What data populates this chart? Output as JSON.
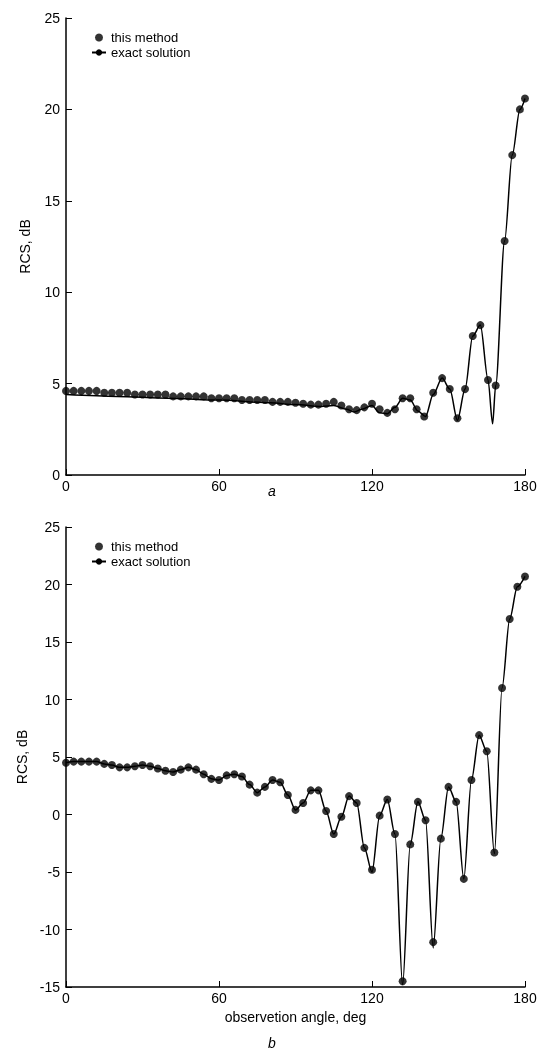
{
  "chart_data": [
    {
      "type": "scatter",
      "ylabel": "RCS, dB",
      "annotations": [
        "a"
      ],
      "xlim": [
        0,
        180
      ],
      "xticks": [
        0,
        60,
        120,
        180
      ],
      "ylim": [
        0,
        25
      ],
      "yticks": [
        0,
        5,
        10,
        15,
        20,
        25
      ],
      "grid": false,
      "legend": "top left",
      "series": [
        {
          "name": "this method",
          "marker": "circle",
          "color": "#000000",
          "x": [
            0,
            3,
            6,
            9,
            12,
            15,
            18,
            21,
            24,
            27,
            30,
            33,
            36,
            39,
            42,
            45,
            48,
            51,
            54,
            57,
            60,
            63,
            66,
            69,
            72,
            75,
            78,
            81,
            84,
            87,
            90,
            93,
            96,
            99,
            102,
            105,
            108,
            111,
            114,
            117,
            120,
            123,
            126,
            129,
            132,
            135,
            137.5,
            140.5,
            144,
            147.5,
            150.5,
            153.5,
            156.5,
            159.5,
            162.5,
            165.5,
            168.5,
            172,
            175,
            178,
            180
          ],
          "values": [
            4.6,
            4.6,
            4.6,
            4.6,
            4.6,
            4.5,
            4.5,
            4.5,
            4.5,
            4.4,
            4.4,
            4.4,
            4.4,
            4.4,
            4.3,
            4.3,
            4.3,
            4.3,
            4.3,
            4.2,
            4.2,
            4.2,
            4.2,
            4.1,
            4.1,
            4.1,
            4.1,
            4.0,
            4.0,
            4.0,
            3.95,
            3.9,
            3.85,
            3.85,
            3.9,
            4.0,
            3.8,
            3.6,
            3.55,
            3.7,
            3.9,
            3.6,
            3.4,
            3.6,
            4.2,
            4.2,
            3.6,
            3.2,
            4.5,
            5.3,
            4.7,
            3.1,
            4.7,
            7.6,
            8.2,
            5.2,
            4.9,
            12.8,
            17.5,
            20.0,
            20.6
          ]
        },
        {
          "name": "exact solution",
          "type": "line",
          "line_style": "solid",
          "color": "#000000",
          "x": [
            0,
            20,
            40,
            60,
            80,
            90,
            100,
            105,
            110,
            113,
            116,
            120,
            123,
            126,
            129,
            132,
            135,
            138,
            141,
            144,
            147.5,
            150.5,
            153.5,
            156.5,
            159.5,
            162.5,
            165.5,
            167.3,
            168.5,
            172,
            175,
            178,
            180
          ],
          "values": [
            4.4,
            4.3,
            4.2,
            4.1,
            3.95,
            3.85,
            3.75,
            3.8,
            3.6,
            3.45,
            3.6,
            3.8,
            3.4,
            3.35,
            3.7,
            4.2,
            4.1,
            3.5,
            3.2,
            4.4,
            5.3,
            4.7,
            3.0,
            4.7,
            7.6,
            8.2,
            5.2,
            2.8,
            4.9,
            12.8,
            17.5,
            20.0,
            20.6
          ]
        }
      ]
    },
    {
      "type": "scatter",
      "xlabel": "observetion angle, deg",
      "ylabel": "RCS, dB",
      "annotations": [
        "b"
      ],
      "xlim": [
        0,
        180
      ],
      "xticks": [
        0,
        60,
        120,
        180
      ],
      "ylim": [
        -15,
        25
      ],
      "yticks": [
        -15,
        -10,
        -5,
        0,
        5,
        10,
        15,
        20,
        25
      ],
      "grid": false,
      "legend": "top left",
      "series": [
        {
          "name": "this method",
          "marker": "circle",
          "color": "#000000",
          "x": [
            0,
            3,
            6,
            9,
            12,
            15,
            18,
            21,
            24,
            27,
            30,
            33,
            36,
            39,
            42,
            45,
            48,
            51,
            54,
            57,
            60,
            63,
            66,
            69,
            72,
            75,
            78,
            81,
            84,
            87,
            90,
            93,
            96,
            99,
            102,
            105,
            108,
            111,
            114,
            117,
            120,
            123,
            126,
            129,
            132,
            135,
            138,
            141,
            144,
            147,
            150,
            153,
            156,
            159,
            162,
            165,
            168,
            171,
            174,
            177,
            180
          ],
          "values": [
            4.5,
            4.6,
            4.6,
            4.6,
            4.6,
            4.4,
            4.3,
            4.1,
            4.1,
            4.2,
            4.3,
            4.2,
            4.0,
            3.8,
            3.7,
            3.9,
            4.1,
            3.9,
            3.5,
            3.1,
            3.0,
            3.4,
            3.5,
            3.3,
            2.6,
            1.9,
            2.4,
            3.0,
            2.8,
            1.7,
            0.4,
            1.0,
            2.1,
            2.1,
            0.3,
            -1.7,
            -0.2,
            1.6,
            1.0,
            -2.9,
            -4.8,
            -0.1,
            1.3,
            -1.7,
            -14.5,
            -2.6,
            1.1,
            -0.5,
            -11.1,
            -2.1,
            2.4,
            1.1,
            -5.6,
            3.0,
            6.9,
            5.5,
            -3.3,
            11.0,
            17.0,
            19.8,
            20.7
          ]
        },
        {
          "name": "exact solution",
          "type": "line",
          "line_style": "solid",
          "color": "#000000",
          "x": [
            0,
            3,
            6,
            9,
            12,
            15,
            18,
            21,
            24,
            27,
            30,
            33,
            36,
            39,
            42,
            45,
            48,
            51,
            54,
            57,
            60,
            63,
            66,
            69,
            72,
            75,
            78,
            81,
            84,
            87,
            90,
            93,
            96,
            99,
            102,
            105,
            108,
            111,
            114,
            117,
            120,
            123,
            126,
            129,
            132,
            135,
            138,
            141,
            144,
            147,
            150,
            153,
            156,
            159,
            162,
            165,
            168,
            171,
            174,
            177,
            180
          ],
          "values": [
            4.5,
            4.6,
            4.6,
            4.6,
            4.6,
            4.4,
            4.3,
            4.1,
            4.1,
            4.2,
            4.3,
            4.2,
            4.0,
            3.8,
            3.7,
            3.9,
            4.1,
            3.9,
            3.5,
            3.1,
            3.0,
            3.4,
            3.5,
            3.3,
            2.6,
            1.9,
            2.4,
            3.0,
            2.8,
            1.7,
            0.4,
            1.0,
            2.1,
            2.1,
            0.3,
            -1.7,
            -0.2,
            1.6,
            1.0,
            -2.9,
            -5.0,
            -0.1,
            1.3,
            -1.7,
            -14.8,
            -2.6,
            1.1,
            -0.5,
            -11.6,
            -2.1,
            2.4,
            1.1,
            -5.6,
            3.0,
            6.9,
            5.5,
            -3.4,
            11.0,
            17.0,
            19.8,
            20.7
          ]
        }
      ]
    }
  ]
}
